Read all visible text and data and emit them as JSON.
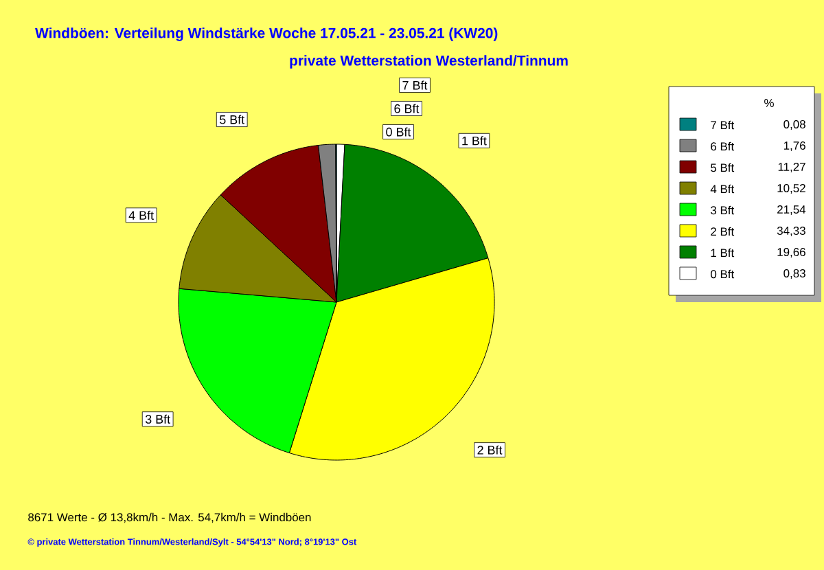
{
  "chart_data": {
    "type": "pie",
    "title": "Windböen: Verteilung Windstärke  Woche 17.05.21 - 23.05.21 (KW20)",
    "subtitle": "private Wetterstation Westerland/Tinnum",
    "legend_title": "%",
    "categories": [
      "7 Bft",
      "6 Bft",
      "5 Bft",
      "4 Bft",
      "3 Bft",
      "2 Bft",
      "1 Bft",
      "0 Bft"
    ],
    "values": [
      0.08,
      1.76,
      11.27,
      10.52,
      21.54,
      34.33,
      19.66,
      0.83
    ],
    "value_labels": [
      "0,08",
      "1,76",
      "11,27",
      "10,52",
      "21,54",
      "34,33",
      "19,66",
      "0,83"
    ],
    "colors": [
      "#008080",
      "#808080",
      "#800000",
      "#808000",
      "#00ff00",
      "#ffff00",
      "#008000",
      "#ffffff"
    ],
    "legend": "top right",
    "annotations": [
      "8671 Werte   -   Ø 13,8km/h  -  Max. 54,7km/h = Windböen",
      "© private Wetterstation Tinnum/Westerland/Sylt   -   54°54'13\" Nord; 8°19'13\" Ost"
    ]
  }
}
